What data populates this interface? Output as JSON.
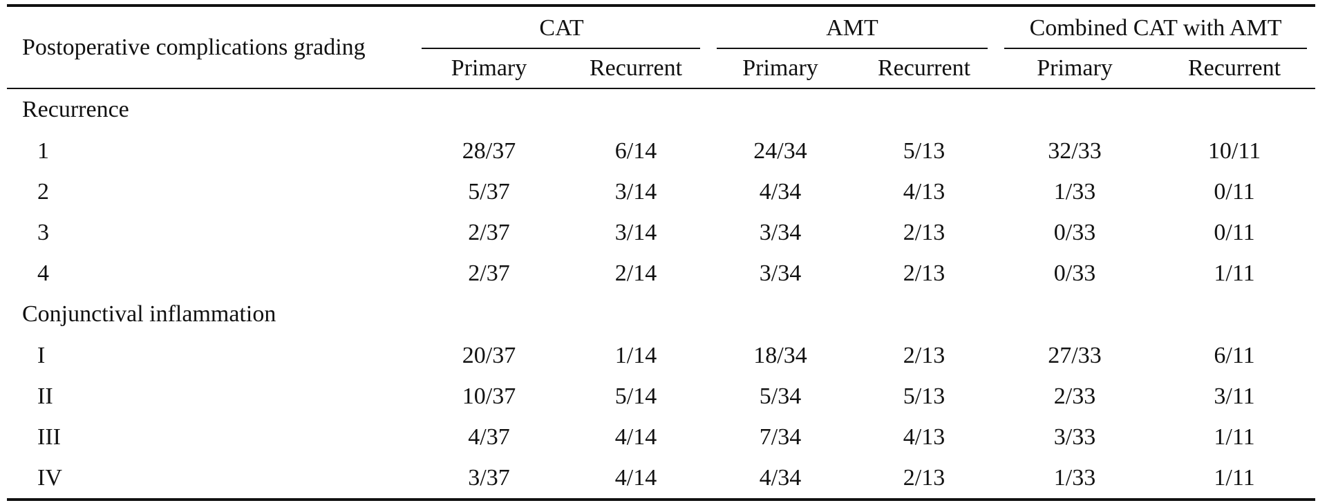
{
  "table": {
    "row_header_label": "Postoperative complications grading",
    "groups": [
      {
        "label": "CAT",
        "sub": [
          "Primary",
          "Recurrent"
        ]
      },
      {
        "label": "AMT",
        "sub": [
          "Primary",
          "Recurrent"
        ]
      },
      {
        "label": "Combined CAT with AMT",
        "sub": [
          "Primary",
          "Recurrent"
        ]
      }
    ],
    "sections": [
      {
        "title": "Recurrence",
        "rows": [
          {
            "grade": "1",
            "values": [
              "28/37",
              "6/14",
              "24/34",
              "5/13",
              "32/33",
              "10/11"
            ]
          },
          {
            "grade": "2",
            "values": [
              "5/37",
              "3/14",
              "4/34",
              "4/13",
              "1/33",
              "0/11"
            ]
          },
          {
            "grade": "3",
            "values": [
              "2/37",
              "3/14",
              "3/34",
              "2/13",
              "0/33",
              "0/11"
            ]
          },
          {
            "grade": "4",
            "values": [
              "2/37",
              "2/14",
              "3/34",
              "2/13",
              "0/33",
              "1/11"
            ]
          }
        ]
      },
      {
        "title": "Conjunctival inflammation",
        "rows": [
          {
            "grade": "I",
            "values": [
              "20/37",
              "1/14",
              "18/34",
              "2/13",
              "27/33",
              "6/11"
            ]
          },
          {
            "grade": "II",
            "values": [
              "10/37",
              "5/14",
              "5/34",
              "5/13",
              "2/33",
              "3/11"
            ]
          },
          {
            "grade": "III",
            "values": [
              "4/37",
              "4/14",
              "7/34",
              "4/13",
              "3/33",
              "1/11"
            ]
          },
          {
            "grade": "IV",
            "values": [
              "3/37",
              "4/14",
              "4/34",
              "2/13",
              "1/33",
              "1/11"
            ]
          }
        ]
      }
    ]
  }
}
